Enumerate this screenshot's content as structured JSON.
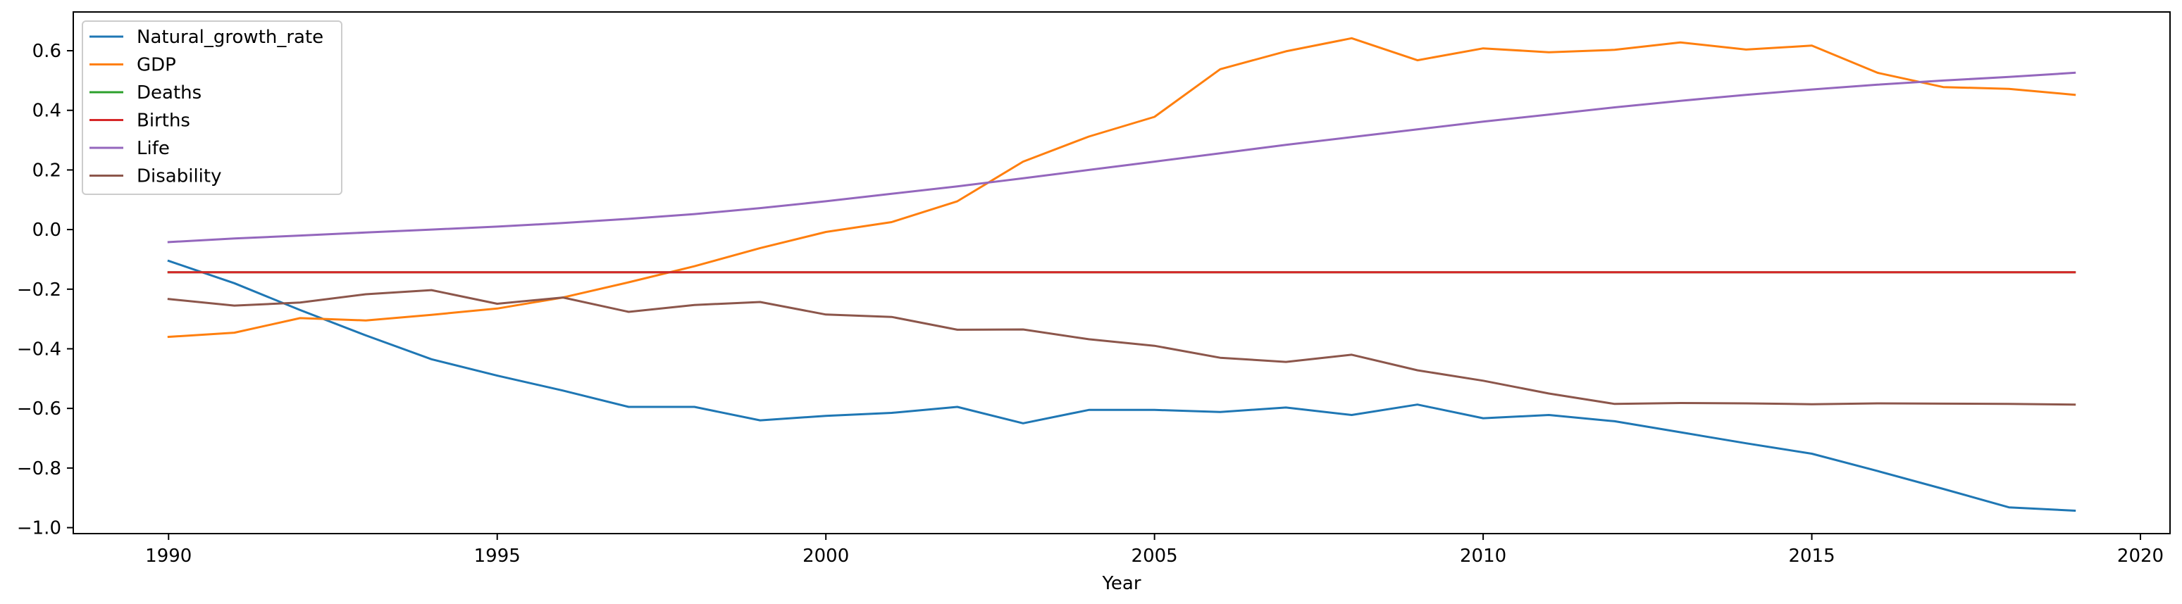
{
  "chart_data": {
    "type": "line",
    "title": "",
    "xlabel": "Year",
    "ylabel": "",
    "xlim": [
      1988.55,
      2020.45
    ],
    "ylim": [
      -1.02,
      0.73
    ],
    "xticks": [
      1990,
      1995,
      2000,
      2005,
      2010,
      2015,
      2020
    ],
    "xtick_labels": [
      "1990",
      "1995",
      "2000",
      "2005",
      "2010",
      "2015",
      "2020"
    ],
    "yticks": [
      -1.0,
      -0.8,
      -0.6,
      -0.4,
      -0.2,
      0.0,
      0.2,
      0.4,
      0.6
    ],
    "ytick_labels": [
      "−1.0",
      "−0.8",
      "−0.6",
      "−0.4",
      "−0.2",
      "0.0",
      "0.2",
      "0.4",
      "0.6"
    ],
    "grid": false,
    "legend_position": "top-left",
    "x": [
      1990,
      1991,
      1992,
      1993,
      1994,
      1995,
      1996,
      1997,
      1998,
      1999,
      2000,
      2001,
      2002,
      2003,
      2004,
      2005,
      2006,
      2007,
      2008,
      2009,
      2010,
      2011,
      2012,
      2013,
      2014,
      2015,
      2016,
      2017,
      2018,
      2019
    ],
    "series": [
      {
        "name": "Natural_growth_rate",
        "color": "#1f77b4",
        "values": [
          -0.105,
          -0.18,
          -0.27,
          -0.355,
          -0.435,
          -0.49,
          -0.54,
          -0.595,
          -0.595,
          -0.64,
          -0.625,
          -0.615,
          -0.595,
          -0.65,
          -0.605,
          -0.605,
          -0.612,
          -0.597,
          -0.622,
          -0.587,
          -0.633,
          -0.622,
          -0.643,
          -0.68,
          -0.717,
          -0.752,
          -0.81,
          -0.87,
          -0.932,
          -0.943
        ]
      },
      {
        "name": "GDP",
        "color": "#ff7f0e",
        "values": [
          -0.36,
          -0.346,
          -0.297,
          -0.305,
          -0.286,
          -0.265,
          -0.228,
          -0.177,
          -0.123,
          -0.062,
          -0.008,
          0.025,
          0.095,
          0.228,
          0.312,
          0.378,
          0.538,
          0.598,
          0.642,
          0.568,
          0.608,
          0.595,
          0.603,
          0.628,
          0.604,
          0.617,
          0.526,
          0.478,
          0.472,
          0.452
        ]
      },
      {
        "name": "Deaths",
        "color": "#2ca02c",
        "values": [
          -0.143,
          -0.143,
          -0.143,
          -0.143,
          -0.143,
          -0.143,
          -0.143,
          -0.143,
          -0.143,
          -0.143,
          -0.143,
          -0.143,
          -0.143,
          -0.143,
          -0.143,
          -0.143,
          -0.143,
          -0.143,
          -0.143,
          -0.143,
          -0.143,
          -0.143,
          -0.143,
          -0.143,
          -0.143,
          -0.143,
          -0.143,
          -0.143,
          -0.143,
          -0.143
        ]
      },
      {
        "name": "Births",
        "color": "#d62728",
        "values": [
          -0.143,
          -0.143,
          -0.143,
          -0.143,
          -0.143,
          -0.143,
          -0.143,
          -0.143,
          -0.143,
          -0.143,
          -0.143,
          -0.143,
          -0.143,
          -0.143,
          -0.143,
          -0.143,
          -0.143,
          -0.143,
          -0.143,
          -0.143,
          -0.143,
          -0.143,
          -0.143,
          -0.143,
          -0.143,
          -0.143,
          -0.143,
          -0.143,
          -0.143,
          -0.143
        ]
      },
      {
        "name": "Life",
        "color": "#9467bd",
        "values": [
          -0.042,
          -0.03,
          -0.02,
          -0.01,
          0.0,
          0.01,
          0.022,
          0.036,
          0.052,
          0.072,
          0.095,
          0.12,
          0.145,
          0.172,
          0.2,
          0.228,
          0.256,
          0.284,
          0.31,
          0.336,
          0.362,
          0.386,
          0.41,
          0.432,
          0.452,
          0.47,
          0.486,
          0.5,
          0.512,
          0.526
        ]
      },
      {
        "name": "Disability",
        "color": "#8c564b",
        "values": [
          -0.233,
          -0.255,
          -0.245,
          -0.217,
          -0.203,
          -0.249,
          -0.228,
          -0.276,
          -0.253,
          -0.243,
          -0.285,
          -0.293,
          -0.336,
          -0.335,
          -0.368,
          -0.39,
          -0.43,
          -0.444,
          -0.42,
          -0.472,
          -0.507,
          -0.55,
          -0.585,
          -0.582,
          -0.583,
          -0.586,
          -0.583,
          -0.584,
          -0.585,
          -0.587
        ]
      }
    ]
  }
}
